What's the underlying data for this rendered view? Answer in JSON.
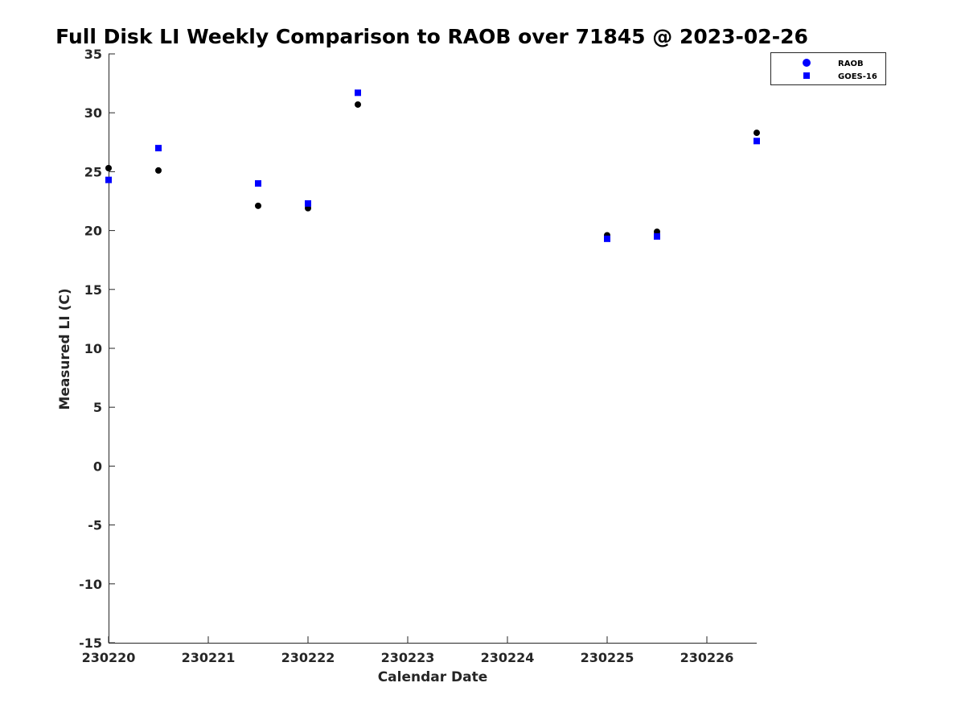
{
  "chart_data": {
    "type": "scatter",
    "title": "Full Disk LI Weekly Comparison to RAOB over 71845 @ 2023-02-26",
    "xlabel": "Calendar Date",
    "ylabel": "Measured LI (C)",
    "xlim": [
      "2023-02-20",
      "2023-02-26T12:00"
    ],
    "ylim": [
      -15,
      35
    ],
    "x_ticks": [
      {
        "date": "2023-02-20",
        "label": "230220"
      },
      {
        "date": "2023-02-21",
        "label": "230221"
      },
      {
        "date": "2023-02-22",
        "label": "230222"
      },
      {
        "date": "2023-02-23",
        "label": "230223"
      },
      {
        "date": "2023-02-24",
        "label": "230224"
      },
      {
        "date": "2023-02-25",
        "label": "230225"
      },
      {
        "date": "2023-02-26",
        "label": "230226"
      }
    ],
    "y_ticks": [
      35,
      30,
      25,
      20,
      15,
      10,
      5,
      0,
      -5,
      -10,
      -15
    ],
    "grid": false,
    "legend_position": "top-right",
    "series": [
      {
        "name": "RAOB",
        "marker": "circle",
        "color": "#000000",
        "legend_color": "#0000ff",
        "points": [
          {
            "x": "2023-02-20T00:00",
            "y": 25.3
          },
          {
            "x": "2023-02-20T12:00",
            "y": 25.1
          },
          {
            "x": "2023-02-21T12:00",
            "y": 22.1
          },
          {
            "x": "2023-02-22T00:00",
            "y": 21.9
          },
          {
            "x": "2023-02-22T12:00",
            "y": 30.7
          },
          {
            "x": "2023-02-25T00:00",
            "y": 19.6
          },
          {
            "x": "2023-02-25T12:00",
            "y": 19.9
          },
          {
            "x": "2023-02-26T12:00",
            "y": 28.3
          }
        ]
      },
      {
        "name": "GOES-16",
        "marker": "square",
        "color": "#0000ff",
        "legend_color": "#0000ff",
        "points": [
          {
            "x": "2023-02-20T00:00",
            "y": 24.3
          },
          {
            "x": "2023-02-20T12:00",
            "y": 27.0
          },
          {
            "x": "2023-02-21T12:00",
            "y": 24.0
          },
          {
            "x": "2023-02-22T00:00",
            "y": 22.3
          },
          {
            "x": "2023-02-22T12:00",
            "y": 31.7
          },
          {
            "x": "2023-02-25T00:00",
            "y": 19.3
          },
          {
            "x": "2023-02-25T12:00",
            "y": 19.5
          },
          {
            "x": "2023-02-26T12:00",
            "y": 27.6
          }
        ]
      }
    ]
  }
}
